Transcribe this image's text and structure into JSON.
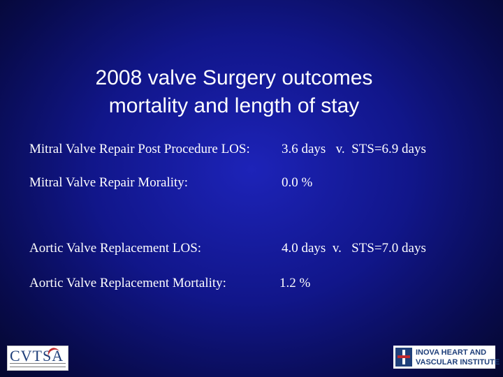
{
  "slide": {
    "title_line1": "2008 valve Surgery outcomes",
    "title_line2": "mortality and length of stay",
    "rows": [
      {
        "label": "Mitral Valve Repair Post Procedure LOS:",
        "value": "3.6 days   v.  STS=6.9 days"
      },
      {
        "label": "Mitral Valve Repair Morality:",
        "value": "0.0 %"
      },
      {
        "label": "Aortic Valve Replacement LOS:",
        "value": "4.0 days  v.   STS=7.0 days"
      },
      {
        "label": "Aortic Valve Replacement Mortality:",
        "value": "1.2 %"
      }
    ]
  },
  "logos": {
    "left_text": "CVTSA",
    "right_line1": "INOVA HEART AND",
    "right_line2": "VASCULAR INSTITUTE"
  },
  "colors": {
    "background": "#11168a",
    "text": "#ffffff",
    "brand_blue": "#1f3f7a",
    "brand_red": "#c0282d"
  }
}
